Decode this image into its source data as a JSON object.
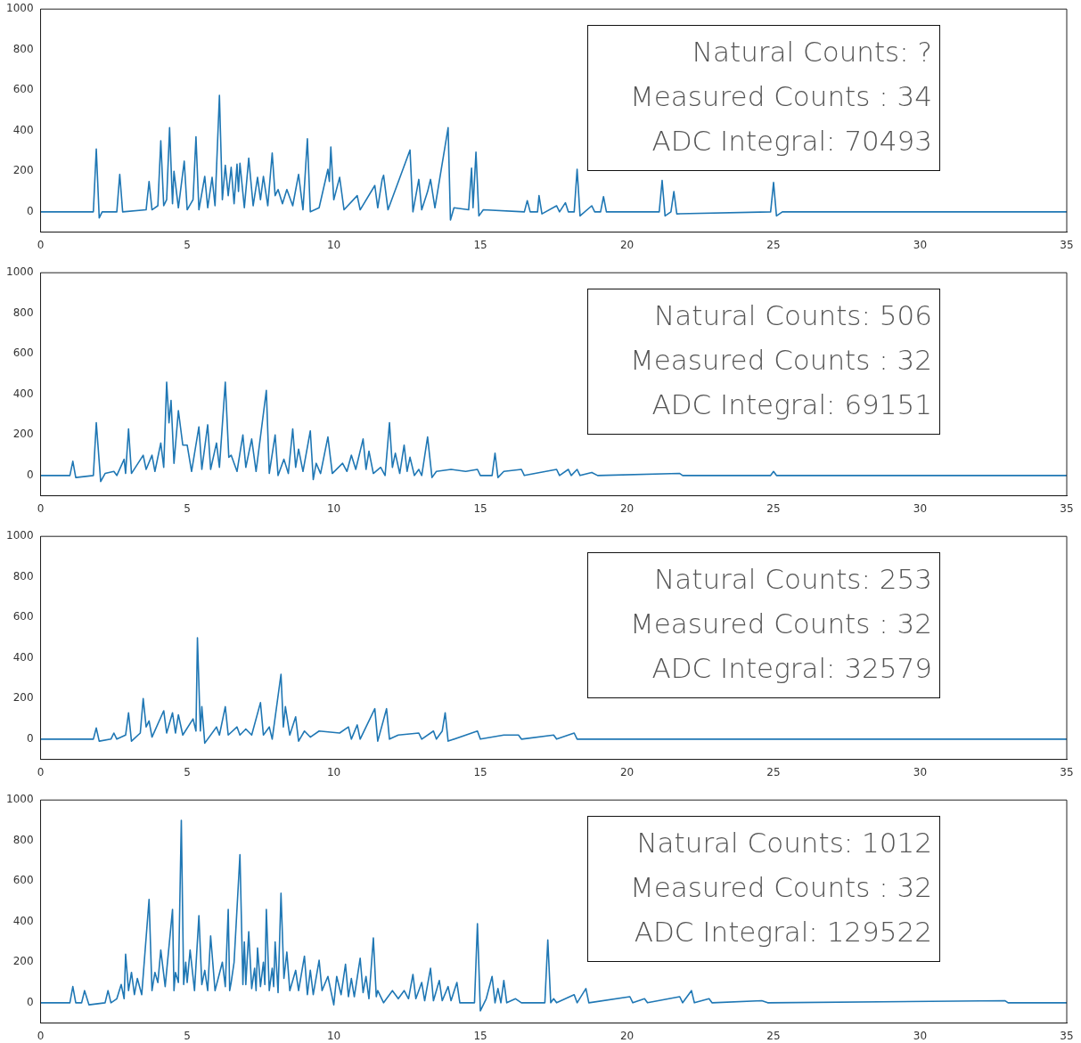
{
  "chart_data": [
    {
      "type": "line",
      "xlim": [
        0,
        35
      ],
      "xticks": [
        0,
        5,
        10,
        15,
        20,
        25,
        30,
        35
      ],
      "ylim": [
        -100,
        1000
      ],
      "yticks": [
        0,
        200,
        400,
        600,
        800,
        1000
      ],
      "annotations": [
        "Natural Counts: ?",
        "Measured Counts : 34",
        "ADC Integral: 70493"
      ],
      "x": [
        0,
        1.8,
        1.9,
        2.0,
        2.1,
        2.6,
        2.7,
        2.8,
        3.6,
        3.7,
        3.8,
        4.0,
        4.1,
        4.2,
        4.3,
        4.4,
        4.5,
        4.55,
        4.7,
        4.9,
        5.0,
        5.2,
        5.3,
        5.4,
        5.6,
        5.7,
        5.85,
        5.95,
        6.1,
        6.2,
        6.3,
        6.4,
        6.5,
        6.6,
        6.7,
        6.75,
        6.8,
        6.95,
        7.1,
        7.25,
        7.4,
        7.5,
        7.6,
        7.75,
        7.9,
        8.0,
        8.1,
        8.25,
        8.4,
        8.6,
        8.8,
        8.95,
        9.1,
        9.2,
        9.5,
        9.8,
        9.85,
        9.9,
        10.0,
        10.2,
        10.35,
        10.8,
        10.9,
        11.4,
        11.5,
        11.65,
        11.7,
        11.85,
        12.6,
        12.7,
        12.9,
        13.0,
        13.2,
        13.3,
        13.45,
        13.9,
        13.98,
        14.1,
        14.6,
        14.7,
        14.75,
        14.85,
        14.95,
        15.1,
        16.5,
        16.6,
        16.7,
        16.95,
        17.0,
        17.1,
        17.6,
        17.7,
        17.9,
        18.0,
        18.2,
        18.3,
        18.4,
        18.8,
        18.9,
        19.1,
        19.2,
        19.3,
        21.1,
        21.2,
        21.3,
        21.5,
        21.6,
        21.7,
        24.9,
        25.0,
        25.1,
        25.3,
        35
      ],
      "series": [
        {
          "color": "#1f77b4",
          "values": [
            0,
            0,
            310,
            -30,
            0,
            0,
            185,
            0,
            10,
            150,
            10,
            30,
            350,
            30,
            60,
            415,
            40,
            200,
            20,
            250,
            10,
            60,
            370,
            10,
            175,
            20,
            170,
            30,
            575,
            60,
            230,
            80,
            220,
            40,
            235,
            100,
            240,
            20,
            265,
            30,
            170,
            60,
            175,
            30,
            290,
            80,
            110,
            40,
            110,
            30,
            185,
            10,
            360,
            0,
            20,
            210,
            150,
            320,
            60,
            170,
            10,
            80,
            10,
            130,
            20,
            160,
            180,
            10,
            305,
            0,
            160,
            10,
            100,
            160,
            20,
            415,
            -40,
            20,
            10,
            215,
            20,
            295,
            -20,
            10,
            0,
            55,
            0,
            0,
            80,
            -10,
            30,
            0,
            45,
            0,
            0,
            210,
            -20,
            30,
            0,
            0,
            75,
            0,
            0,
            155,
            -20,
            0,
            100,
            -10,
            0,
            145,
            -20,
            0,
            0
          ]
        }
      ]
    },
    {
      "type": "line",
      "xlim": [
        0,
        35
      ],
      "xticks": [
        0,
        5,
        10,
        15,
        20,
        25,
        30,
        35
      ],
      "ylim": [
        -100,
        1000
      ],
      "yticks": [
        0,
        200,
        400,
        600,
        800,
        1000
      ],
      "annotations": [
        "Natural Counts: 506",
        "Measured Counts : 32",
        "ADC Integral: 69151"
      ],
      "x": [
        0,
        1.0,
        1.1,
        1.2,
        1.8,
        1.9,
        2.05,
        2.2,
        2.5,
        2.6,
        2.85,
        2.9,
        3.0,
        3.1,
        3.5,
        3.6,
        3.8,
        3.9,
        4.1,
        4.2,
        4.3,
        4.38,
        4.45,
        4.55,
        4.7,
        4.85,
        5.0,
        5.15,
        5.4,
        5.5,
        5.7,
        5.8,
        6.0,
        6.1,
        6.3,
        6.42,
        6.5,
        6.7,
        6.9,
        7.0,
        7.2,
        7.35,
        7.7,
        7.8,
        8.0,
        8.1,
        8.3,
        8.45,
        8.6,
        8.7,
        8.8,
        8.95,
        9.2,
        9.3,
        9.4,
        9.55,
        9.8,
        9.95,
        10.3,
        10.45,
        10.6,
        10.75,
        11.0,
        11.1,
        11.2,
        11.35,
        11.6,
        11.75,
        11.9,
        12.0,
        12.1,
        12.25,
        12.4,
        12.5,
        12.6,
        12.75,
        12.9,
        13.0,
        13.2,
        13.35,
        13.5,
        14.0,
        14.5,
        14.9,
        15.0,
        15.4,
        15.5,
        15.6,
        15.8,
        16.4,
        16.5,
        17.6,
        17.7,
        18.0,
        18.1,
        18.3,
        18.4,
        18.8,
        19.0,
        21.8,
        21.9,
        24.9,
        25.0,
        25.1,
        35
      ],
      "series": [
        {
          "color": "#1f77b4",
          "values": [
            0,
            0,
            70,
            -10,
            0,
            260,
            -30,
            10,
            20,
            0,
            80,
            10,
            230,
            10,
            100,
            30,
            100,
            20,
            160,
            40,
            460,
            260,
            370,
            60,
            320,
            150,
            150,
            20,
            240,
            30,
            250,
            30,
            160,
            40,
            460,
            90,
            100,
            20,
            200,
            40,
            180,
            20,
            420,
            10,
            200,
            0,
            80,
            10,
            230,
            40,
            130,
            20,
            220,
            -20,
            60,
            10,
            190,
            10,
            60,
            20,
            100,
            30,
            180,
            30,
            120,
            10,
            40,
            0,
            260,
            40,
            110,
            10,
            150,
            20,
            90,
            0,
            30,
            0,
            190,
            -10,
            20,
            30,
            20,
            30,
            0,
            0,
            110,
            -10,
            20,
            30,
            0,
            30,
            0,
            30,
            0,
            30,
            0,
            15,
            0,
            10,
            0,
            0,
            20,
            0,
            0
          ]
        }
      ]
    },
    {
      "type": "line",
      "xlim": [
        0,
        35
      ],
      "xticks": [
        0,
        5,
        10,
        15,
        20,
        25,
        30,
        35
      ],
      "ylim": [
        -100,
        1000
      ],
      "yticks": [
        0,
        200,
        400,
        600,
        800,
        1000
      ],
      "annotations": [
        "Natural Counts: 253",
        "Measured Counts : 32",
        "ADC Integral: 32579"
      ],
      "x": [
        0,
        1.8,
        1.9,
        2.0,
        2.4,
        2.5,
        2.6,
        2.9,
        3.0,
        3.1,
        3.4,
        3.5,
        3.6,
        3.7,
        3.8,
        4.2,
        4.3,
        4.5,
        4.6,
        4.7,
        4.85,
        5.2,
        5.3,
        5.35,
        5.45,
        5.5,
        5.6,
        6.0,
        6.1,
        6.3,
        6.4,
        6.7,
        6.8,
        7.0,
        7.2,
        7.5,
        7.6,
        7.8,
        7.9,
        8.2,
        8.28,
        8.35,
        8.5,
        8.7,
        8.8,
        9.0,
        9.2,
        9.5,
        10.2,
        10.5,
        10.6,
        10.8,
        10.9,
        11.4,
        11.5,
        11.8,
        11.9,
        12.2,
        12.9,
        13.0,
        13.4,
        13.5,
        13.7,
        13.8,
        13.9,
        14.9,
        15.0,
        15.8,
        16.3,
        16.4,
        17.5,
        17.6,
        18.2,
        18.3,
        35
      ],
      "series": [
        {
          "color": "#1f77b4",
          "values": [
            0,
            0,
            55,
            -10,
            0,
            30,
            0,
            20,
            130,
            -10,
            30,
            200,
            60,
            90,
            10,
            140,
            30,
            130,
            30,
            120,
            20,
            100,
            40,
            500,
            40,
            160,
            -20,
            60,
            20,
            160,
            20,
            60,
            20,
            50,
            20,
            180,
            20,
            60,
            0,
            320,
            60,
            160,
            20,
            110,
            -10,
            40,
            10,
            40,
            30,
            60,
            0,
            70,
            0,
            150,
            -10,
            150,
            0,
            20,
            30,
            0,
            40,
            0,
            40,
            130,
            -10,
            40,
            0,
            20,
            20,
            0,
            20,
            0,
            30,
            0,
            0
          ]
        }
      ]
    },
    {
      "type": "line",
      "xlim": [
        0,
        35
      ],
      "xticks": [
        0,
        5,
        10,
        15,
        20,
        25,
        30,
        35
      ],
      "ylim": [
        -100,
        1000
      ],
      "yticks": [
        0,
        200,
        400,
        600,
        800,
        1000
      ],
      "annotations": [
        "Natural Counts: 1012",
        "Measured Counts : 32",
        "ADC Integral: 129522"
      ],
      "x": [
        0,
        1.0,
        1.1,
        1.2,
        1.4,
        1.5,
        1.65,
        2.2,
        2.3,
        2.4,
        2.6,
        2.75,
        2.85,
        2.9,
        3.0,
        3.1,
        3.2,
        3.3,
        3.45,
        3.7,
        3.8,
        3.9,
        4.0,
        4.1,
        4.25,
        4.5,
        4.55,
        4.6,
        4.7,
        4.8,
        4.88,
        4.95,
        5.0,
        5.1,
        5.25,
        5.4,
        5.5,
        5.6,
        5.7,
        5.8,
        5.95,
        6.2,
        6.3,
        6.4,
        6.45,
        6.5,
        6.6,
        6.8,
        6.9,
        6.95,
        7.0,
        7.1,
        7.2,
        7.3,
        7.35,
        7.4,
        7.5,
        7.6,
        7.65,
        7.7,
        7.8,
        7.9,
        7.95,
        8.0,
        8.1,
        8.2,
        8.3,
        8.4,
        8.5,
        8.7,
        8.8,
        9.0,
        9.1,
        9.2,
        9.3,
        9.5,
        9.6,
        9.8,
        10.0,
        10.1,
        10.25,
        10.4,
        10.5,
        10.6,
        10.7,
        10.9,
        11.0,
        11.1,
        11.2,
        11.35,
        11.45,
        11.5,
        11.7,
        12.0,
        12.2,
        12.4,
        12.55,
        12.7,
        12.8,
        13.0,
        13.1,
        13.3,
        13.4,
        13.6,
        13.7,
        13.9,
        14.0,
        14.2,
        14.3,
        14.8,
        14.9,
        15.0,
        15.2,
        15.4,
        15.5,
        15.6,
        15.7,
        15.8,
        15.9,
        16.2,
        16.4,
        17.2,
        17.3,
        17.4,
        17.5,
        17.6,
        18.2,
        18.3,
        18.6,
        18.7,
        20.1,
        20.2,
        20.6,
        20.7,
        21.8,
        21.9,
        22.2,
        22.3,
        22.8,
        22.9,
        24.6,
        24.8,
        32.9,
        33.0,
        35
      ],
      "series": [
        {
          "color": "#1f77b4",
          "values": [
            0,
            0,
            80,
            0,
            0,
            60,
            -10,
            0,
            60,
            0,
            20,
            90,
            20,
            240,
            60,
            150,
            40,
            120,
            40,
            510,
            60,
            150,
            100,
            260,
            80,
            460,
            60,
            150,
            100,
            900,
            90,
            200,
            100,
            260,
            60,
            430,
            90,
            160,
            60,
            330,
            60,
            200,
            80,
            460,
            60,
            100,
            200,
            730,
            90,
            300,
            90,
            350,
            70,
            170,
            60,
            270,
            80,
            200,
            90,
            460,
            60,
            170,
            80,
            300,
            50,
            540,
            120,
            250,
            60,
            160,
            60,
            230,
            40,
            160,
            40,
            210,
            60,
            130,
            -10,
            130,
            40,
            190,
            30,
            120,
            30,
            220,
            50,
            130,
            20,
            320,
            30,
            60,
            0,
            60,
            20,
            60,
            20,
            140,
            20,
            100,
            10,
            170,
            10,
            110,
            10,
            80,
            10,
            100,
            0,
            0,
            390,
            -40,
            20,
            130,
            0,
            70,
            0,
            110,
            0,
            20,
            0,
            0,
            310,
            0,
            20,
            0,
            40,
            0,
            70,
            0,
            30,
            0,
            20,
            0,
            30,
            0,
            60,
            0,
            20,
            0,
            10,
            0,
            10,
            0,
            0
          ]
        }
      ]
    }
  ]
}
